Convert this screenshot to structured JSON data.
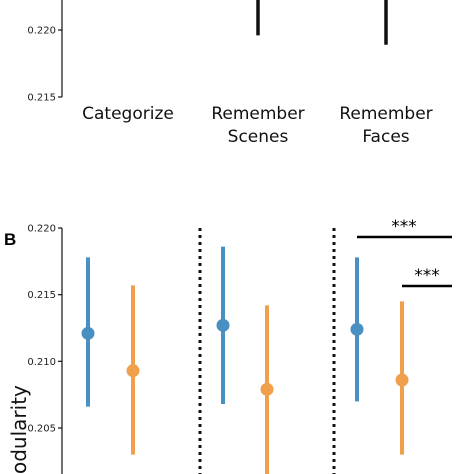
{
  "chart_data": [
    {
      "type": "errorbar",
      "panel": "",
      "categories": [
        "Categorize",
        "Remember\nScenes",
        "Remember\nFaces"
      ],
      "yticks": [
        "0.220",
        "0.215"
      ],
      "yticks_values": [
        0.22,
        0.215
      ],
      "ylim": [
        0.215,
        0.2265
      ],
      "series": [
        {
          "color": "#111111",
          "values": [
            {
              "x": "Categorize",
              "y_low": null,
              "y_high": null
            },
            {
              "x": "Remember\nScenes",
              "y_low": 0.2196,
              "y_high": 0.2265
            },
            {
              "x": "Remember\nFaces",
              "y_low": 0.2189,
              "y_high": 0.2265
            }
          ]
        }
      ]
    },
    {
      "type": "errorbar",
      "panel": "B",
      "ylabel": "odularity",
      "yticks": [
        "0.220",
        "0.215",
        "0.210",
        "0.205"
      ],
      "yticks_values": [
        0.22,
        0.215,
        0.21,
        0.205
      ],
      "ylim": [
        0.2012,
        0.22
      ],
      "groups": 3,
      "series": [
        {
          "color": "#4a8fc2",
          "values": [
            {
              "group": 1,
              "mean": 0.2121,
              "low": 0.2066,
              "high": 0.2178
            },
            {
              "group": 2,
              "mean": 0.2127,
              "low": 0.2068,
              "high": 0.2186
            },
            {
              "group": 3,
              "mean": 0.2124,
              "low": 0.207,
              "high": 0.2178
            }
          ]
        },
        {
          "color": "#f0a04b",
          "values": [
            {
              "group": 1,
              "mean": 0.2093,
              "low": 0.203,
              "high": 0.2157
            },
            {
              "group": 2,
              "mean": 0.2079,
              "low": 0.2015,
              "high": 0.2142
            },
            {
              "group": 3,
              "mean": 0.2086,
              "low": 0.203,
              "high": 0.2145
            }
          ]
        }
      ],
      "significance": [
        {
          "label": "***",
          "x_from": "group3-blue",
          "x_to": "group3-right"
        },
        {
          "label": "***",
          "x_from": "group3-orange",
          "x_to": "group3-right"
        }
      ]
    }
  ]
}
